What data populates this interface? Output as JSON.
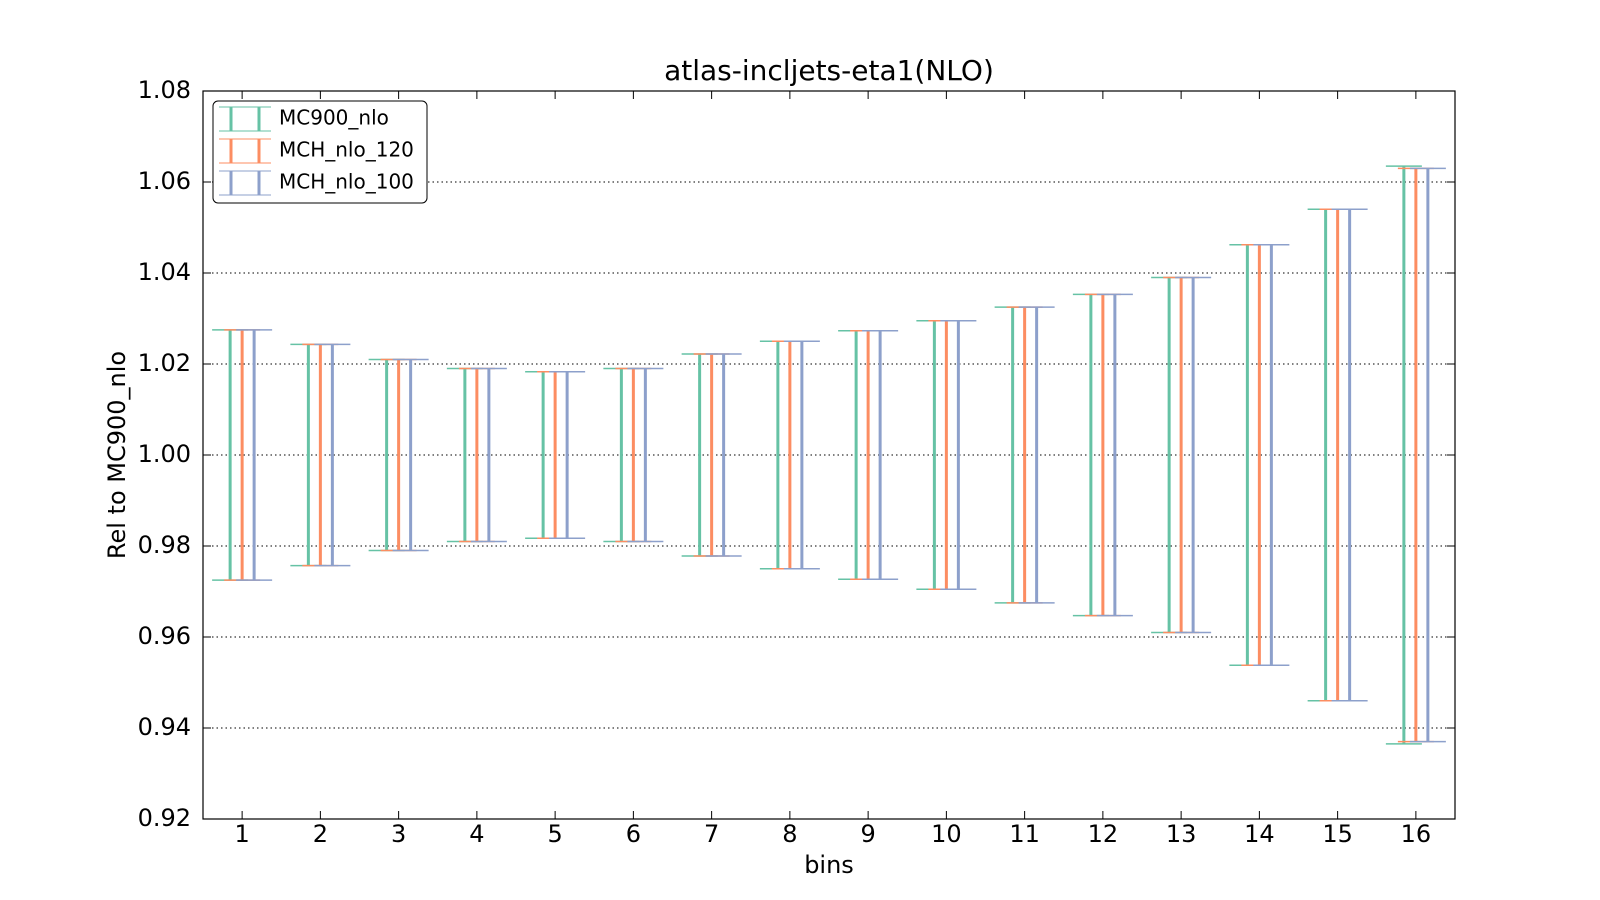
{
  "chart_data": {
    "type": "errorbar",
    "title": "atlas-incljets-eta1(NLO)",
    "x_label": "bins",
    "y_label": "Rel to MC900_nlo",
    "categories": [
      "1",
      "2",
      "3",
      "4",
      "5",
      "6",
      "7",
      "8",
      "9",
      "10",
      "11",
      "12",
      "13",
      "14",
      "15",
      "16"
    ],
    "series": [
      {
        "name": "MC900_nlo",
        "color": "#66c2a5",
        "values": [
          1,
          1,
          1,
          1,
          1,
          1,
          1,
          1,
          1,
          1,
          1,
          1,
          1,
          1,
          1,
          1
        ],
        "errors": [
          0.0275,
          0.0243,
          0.021,
          0.019,
          0.0183,
          0.019,
          0.0222,
          0.025,
          0.0273,
          0.0295,
          0.0325,
          0.0353,
          0.039,
          0.0462,
          0.054,
          0.0635
        ]
      },
      {
        "name": "MCH_nlo_120",
        "color": "#fc8d62",
        "values": [
          1,
          1,
          1,
          1,
          1,
          1,
          1,
          1,
          1,
          1,
          1,
          1,
          1,
          1,
          1,
          1
        ],
        "errors": [
          0.0275,
          0.0243,
          0.021,
          0.019,
          0.0183,
          0.019,
          0.0222,
          0.025,
          0.0273,
          0.0295,
          0.0325,
          0.0353,
          0.039,
          0.0462,
          0.054,
          0.063
        ]
      },
      {
        "name": "MCH_nlo_100",
        "color": "#8da0cb",
        "values": [
          1,
          1,
          1,
          1,
          1,
          1,
          1,
          1,
          1,
          1,
          1,
          1,
          1,
          1,
          1,
          1
        ],
        "errors": [
          0.0275,
          0.0243,
          0.021,
          0.019,
          0.0183,
          0.019,
          0.0222,
          0.025,
          0.0273,
          0.0295,
          0.0325,
          0.0353,
          0.039,
          0.0462,
          0.054,
          0.063
        ]
      }
    ],
    "ylim": [
      0.92,
      1.08
    ],
    "yticks": [
      0.92,
      0.94,
      0.96,
      0.98,
      {
        "value": 1,
        "label": "1.00"
      },
      1.02,
      1.04,
      1.06,
      1.08
    ],
    "grid": true,
    "legend": "upper-left"
  }
}
